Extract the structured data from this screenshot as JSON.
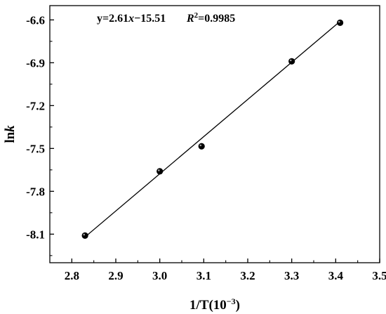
{
  "chart_data": {
    "type": "scatter",
    "x": [
      2.83,
      3.0,
      3.095,
      3.3,
      3.41
    ],
    "y": [
      -8.11,
      -7.66,
      -7.485,
      -6.89,
      -6.62
    ],
    "fit_line": {
      "x": [
        2.83,
        3.41
      ],
      "y": [
        -8.12,
        -6.61
      ]
    },
    "xlabel_main": "1/T(10",
    "xlabel_sup": "−3",
    "xlabel_close": ")",
    "ylabel_main": "ln",
    "ylabel_italic": "k",
    "xlim": [
      2.75,
      3.5
    ],
    "ylim": [
      -8.3,
      -6.5
    ],
    "xticks": [
      "2.8",
      "2.9",
      "3.0",
      "3.1",
      "3.2",
      "3.3",
      "3.4",
      "3.5"
    ],
    "yticks": [
      "-8.1",
      "-7.8",
      "-7.5",
      "-7.2",
      "-6.9",
      "-6.6"
    ],
    "annotation": {
      "eq_prefix": "y=2.61",
      "eq_var": "x",
      "eq_suffix": "−15.51",
      "r_symbol": "R",
      "r_sup": "2",
      "r_value": "=0.9985"
    },
    "grid": false,
    "marker_color": "#000000"
  }
}
